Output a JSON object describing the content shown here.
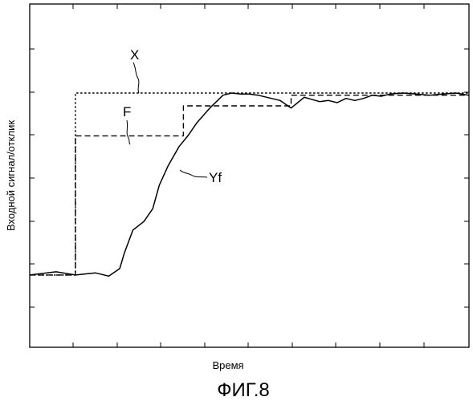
{
  "figure": {
    "caption": "ФИГ.8"
  },
  "chart_data": {
    "type": "line",
    "xlabel": "Время",
    "ylabel": "Входной сигнал/отклик",
    "xlim": [
      0,
      1
    ],
    "ylim": [
      0,
      1
    ],
    "grid": false,
    "series": [
      {
        "name": "X",
        "style": "dotted",
        "x": [
          0.0,
          0.104,
          0.104,
          1.0
        ],
        "y": [
          0.15,
          0.15,
          1.0,
          1.0
        ]
      },
      {
        "name": "F",
        "style": "dashed",
        "x": [
          0.0,
          0.104,
          0.104,
          0.35,
          0.35,
          0.595,
          0.595,
          1.0
        ],
        "y": [
          0.15,
          0.15,
          0.8,
          0.8,
          0.94,
          0.94,
          0.99,
          0.99
        ]
      },
      {
        "name": "Yf",
        "style": "solid",
        "x": [
          0.0,
          0.06,
          0.104,
          0.15,
          0.18,
          0.205,
          0.215,
          0.235,
          0.26,
          0.28,
          0.295,
          0.315,
          0.34,
          0.36,
          0.38,
          0.41,
          0.44,
          0.46,
          0.48,
          0.5,
          0.52,
          0.55,
          0.57,
          0.595,
          0.61,
          0.625,
          0.66,
          0.68,
          0.7,
          0.72,
          0.74,
          0.76,
          0.78,
          0.8,
          0.82,
          0.85,
          0.88,
          0.91,
          0.94,
          0.97,
          1.0
        ],
        "y": [
          0.15,
          0.165,
          0.15,
          0.16,
          0.145,
          0.18,
          0.25,
          0.36,
          0.4,
          0.46,
          0.57,
          0.66,
          0.75,
          0.8,
          0.86,
          0.93,
          0.99,
          1.0,
          0.995,
          0.995,
          0.99,
          0.975,
          0.965,
          0.93,
          0.955,
          0.98,
          0.96,
          0.965,
          0.955,
          0.975,
          0.965,
          0.975,
          0.99,
          0.985,
          0.995,
          1.0,
          0.995,
          0.99,
          0.995,
          1.0,
          0.99
        ]
      }
    ]
  }
}
